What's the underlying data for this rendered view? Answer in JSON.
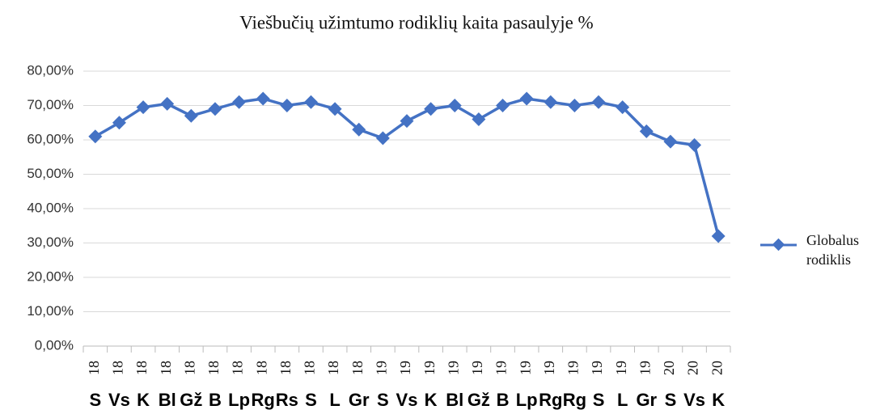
{
  "chart_data": {
    "type": "line",
    "title": "Viešbučių užimtumo rodiklių kaita pasaulyje %",
    "categories": [
      "S",
      "Vs",
      "K",
      "Bl",
      "Gž",
      "B",
      "Lp",
      "Rg",
      "Rs",
      "S",
      "L",
      "Gr",
      "S",
      "Vs",
      "K",
      "Bl",
      "Gž",
      "B",
      "Lp",
      "Rg",
      "Rg",
      "S",
      "L",
      "Gr",
      "S",
      "Vs",
      "K"
    ],
    "category_years": [
      "18",
      "18",
      "18",
      "18",
      "18",
      "18",
      "18",
      "18",
      "18",
      "18",
      "18",
      "18",
      "19",
      "19",
      "19",
      "19",
      "19",
      "19",
      "19",
      "19",
      "19",
      "19",
      "19",
      "19",
      "20",
      "20",
      "20"
    ],
    "series": [
      {
        "name": "Globalus rodiklis",
        "color": "#4472c4",
        "values": [
          61,
          65,
          69.5,
          70.5,
          67,
          69,
          71,
          72,
          70,
          71,
          69,
          63,
          60.5,
          65.5,
          69,
          70,
          66,
          70,
          72,
          71,
          70,
          71,
          69.5,
          62.5,
          59.5,
          58.5,
          32
        ]
      }
    ],
    "ylim": [
      0,
      80
    ],
    "yticks": [
      {
        "value": 0,
        "label": "0,00%"
      },
      {
        "value": 10,
        "label": "10,00%"
      },
      {
        "value": 20,
        "label": "20,00%"
      },
      {
        "value": 30,
        "label": "30,00%"
      },
      {
        "value": 40,
        "label": "40,00%"
      },
      {
        "value": 50,
        "label": "50,00%"
      },
      {
        "value": 60,
        "label": "60,00%"
      },
      {
        "value": 70,
        "label": "70,00%"
      },
      {
        "value": 80,
        "label": "80,00%"
      }
    ],
    "grid": true,
    "legend": "right"
  }
}
